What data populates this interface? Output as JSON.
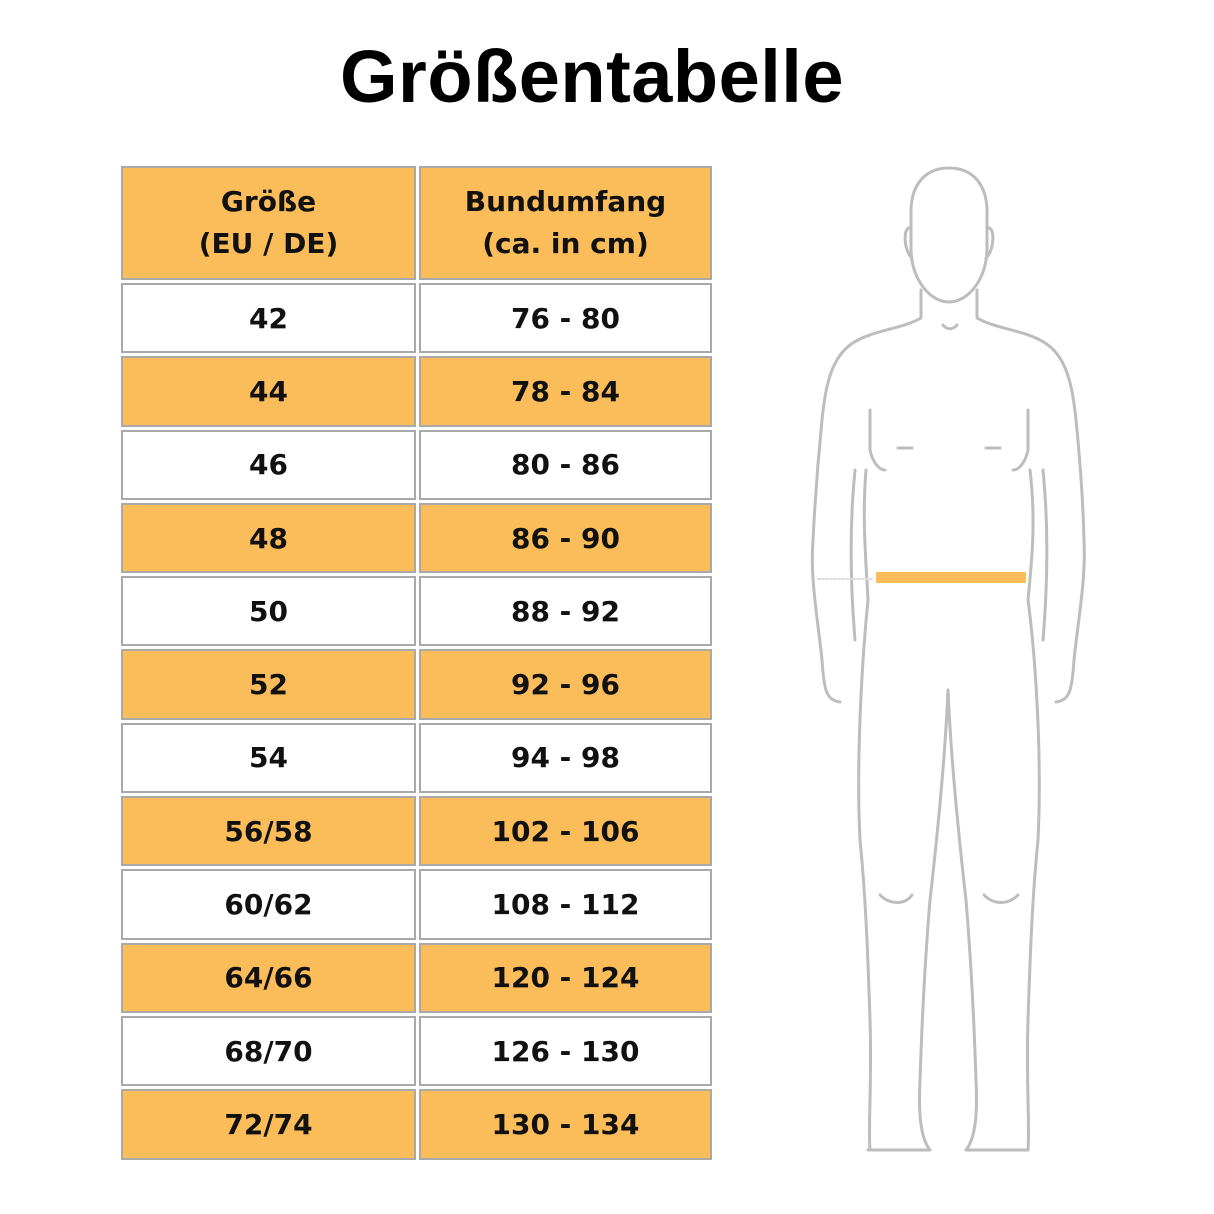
{
  "title": "Größentabelle",
  "table": {
    "headers": [
      "Größe\n(EU / DE)",
      "Bundumfang\n(ca. in cm)"
    ],
    "rows": [
      [
        "42",
        "76 - 80"
      ],
      [
        "44",
        "78 - 84"
      ],
      [
        "46",
        "80 - 86"
      ],
      [
        "48",
        "86 - 90"
      ],
      [
        "50",
        "88 - 92"
      ],
      [
        "52",
        "92 - 96"
      ],
      [
        "54",
        "94 - 98"
      ],
      [
        "56/58",
        "102 - 106"
      ],
      [
        "60/62",
        "108 - 112"
      ],
      [
        "64/66",
        "120 - 124"
      ],
      [
        "68/70",
        "126 - 130"
      ],
      [
        "72/74",
        "130 - 134"
      ]
    ]
  },
  "colors": {
    "accent": "#fbbc5a",
    "border": "#a9a9a9",
    "figure_outline": "#bdbdbd"
  },
  "figure": {
    "icon": "human-body-waist-measure-icon"
  }
}
